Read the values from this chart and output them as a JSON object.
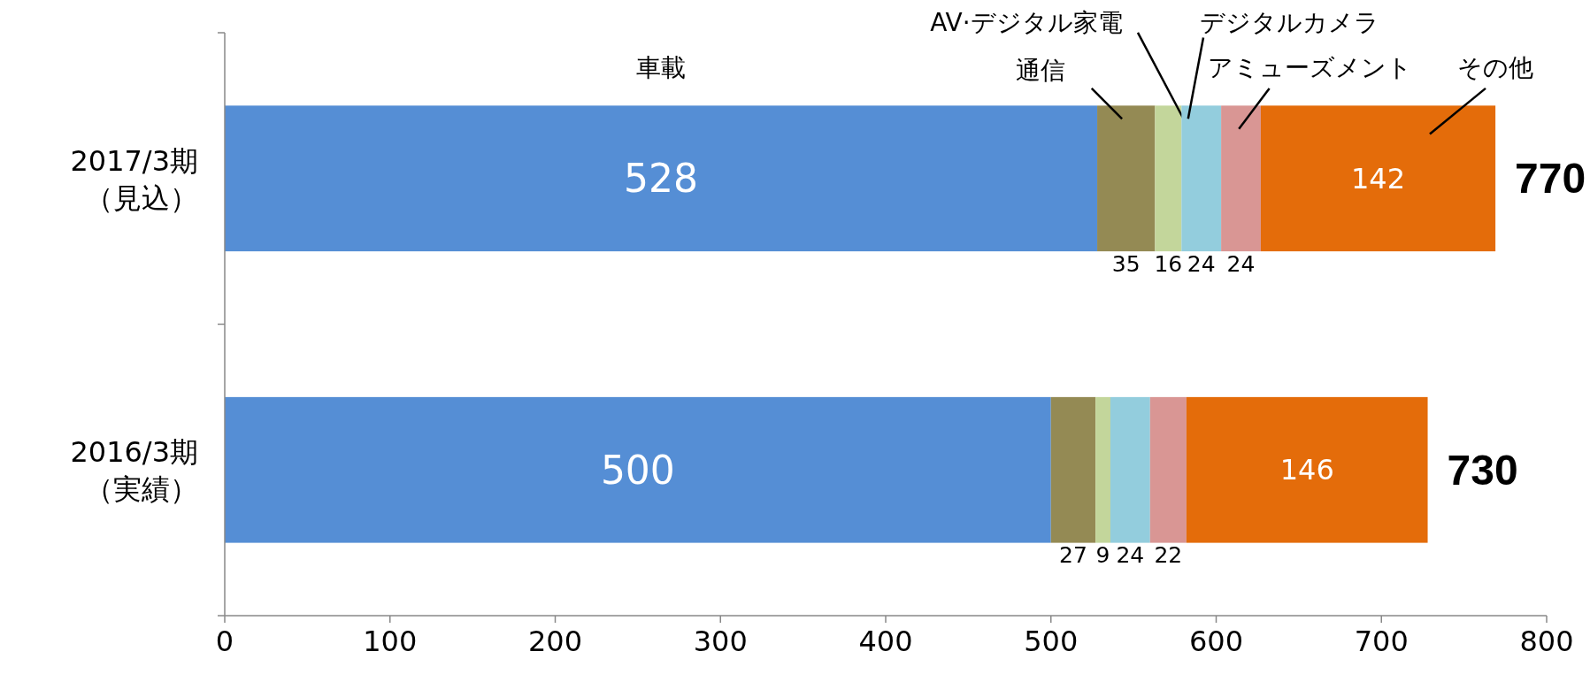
{
  "chart_data": {
    "type": "bar",
    "orientation": "horizontal",
    "stacked": true,
    "categories": [
      "2017/3期（見込）",
      "2016/3期（実績）"
    ],
    "series": [
      {
        "name": "車載",
        "color": "#558ed5",
        "values": [
          528,
          500
        ]
      },
      {
        "name": "通信",
        "color": "#948a54",
        "values": [
          35,
          27
        ]
      },
      {
        "name": "AV·デジタル家電",
        "color": "#c3d69b",
        "values": [
          16,
          9
        ]
      },
      {
        "name": "デジタルカメラ",
        "color": "#93cddd",
        "values": [
          24,
          24
        ]
      },
      {
        "name": "アミューズメント",
        "color": "#d99694",
        "values": [
          24,
          22
        ]
      },
      {
        "name": "その他",
        "color": "#e46c0a",
        "values": [
          142,
          146
        ]
      }
    ],
    "totals": [
      "770",
      "730"
    ],
    "data_labels": true,
    "xlim": [
      0,
      800
    ],
    "xticks": [
      0,
      100,
      200,
      300,
      400,
      500,
      600,
      700,
      800
    ],
    "grid": false
  }
}
